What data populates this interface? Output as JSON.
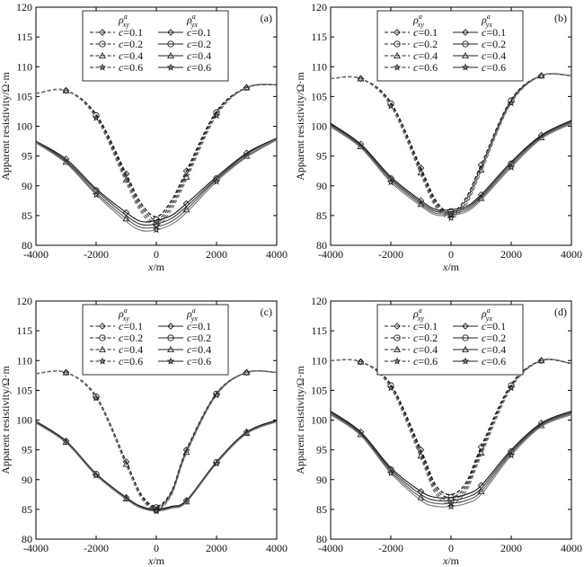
{
  "chart_data": [
    {
      "panel_label": "(a)",
      "type": "line",
      "xlabel": "x/m",
      "ylabel": "Apparent resistivity/Ω·m",
      "xlim": [
        -4000,
        4000
      ],
      "ylim": [
        80,
        120
      ],
      "xticks": [
        -4000,
        -2000,
        0,
        2000,
        4000
      ],
      "yticks": [
        80,
        85,
        90,
        95,
        100,
        105,
        110,
        115,
        120
      ],
      "grid": false,
      "legend": {
        "placement": "top-center",
        "group_headers": [
          "ρ",
          "ρ"
        ],
        "group_header_sup": [
          "a",
          "a"
        ],
        "group_header_sub": [
          "xy",
          "yx"
        ]
      },
      "x": [
        -4000,
        -3000,
        -2000,
        -1000,
        -500,
        0,
        500,
        1000,
        2000,
        3000,
        4000
      ],
      "series": [
        {
          "name": "c=0.1",
          "group": "xy",
          "values": [
            105.5,
            106.0,
            102.0,
            92.0,
            87.0,
            84.8,
            87.5,
            92.5,
            102.5,
            106.5,
            107.0
          ]
        },
        {
          "name": "c=0.2",
          "group": "xy",
          "values": [
            105.5,
            106.0,
            101.8,
            91.5,
            86.5,
            84.3,
            87.0,
            92.0,
            102.3,
            106.5,
            107.0
          ]
        },
        {
          "name": "c=0.4",
          "group": "xy",
          "values": [
            105.5,
            106.0,
            101.6,
            91.0,
            86.0,
            83.8,
            86.5,
            91.5,
            102.0,
            106.5,
            107.0
          ]
        },
        {
          "name": "c=0.6",
          "group": "xy",
          "values": [
            105.5,
            106.0,
            101.4,
            90.5,
            85.5,
            83.3,
            86.0,
            91.0,
            101.8,
            106.5,
            107.0
          ]
        },
        {
          "name": "c=0.1",
          "group": "yx",
          "values": [
            97.5,
            94.5,
            89.5,
            85.5,
            84.0,
            84.2,
            85.0,
            87.0,
            91.5,
            95.5,
            98.0
          ]
        },
        {
          "name": "c=0.2",
          "group": "yx",
          "values": [
            97.5,
            94.2,
            89.2,
            85.0,
            83.5,
            83.6,
            84.5,
            86.5,
            91.2,
            95.3,
            98.0
          ]
        },
        {
          "name": "c=0.4",
          "group": "yx",
          "values": [
            97.3,
            94.0,
            88.8,
            84.5,
            83.0,
            83.1,
            84.0,
            86.0,
            91.0,
            95.0,
            97.8
          ]
        },
        {
          "name": "c=0.6",
          "group": "yx",
          "values": [
            97.2,
            93.8,
            88.5,
            84.0,
            82.5,
            82.6,
            83.5,
            85.5,
            90.7,
            94.8,
            97.7
          ]
        }
      ]
    },
    {
      "panel_label": "(b)",
      "type": "line",
      "xlabel": "x/m",
      "ylabel": "Apparent resistivity/Ω·m",
      "xlim": [
        -4000,
        4000
      ],
      "ylim": [
        80,
        120
      ],
      "xticks": [
        -4000,
        -2000,
        0,
        2000,
        4000
      ],
      "yticks": [
        80,
        85,
        90,
        95,
        100,
        105,
        110,
        115,
        120
      ],
      "grid": false,
      "legend": {
        "placement": "top-center",
        "group_headers": [
          "ρ",
          "ρ"
        ],
        "group_header_sup": [
          "a",
          "a"
        ],
        "group_header_sub": [
          "xy",
          "yx"
        ]
      },
      "x": [
        -4000,
        -3000,
        -2000,
        -1000,
        -500,
        0,
        500,
        1000,
        2000,
        3000,
        4000
      ],
      "series": [
        {
          "name": "c=0.1",
          "group": "xy",
          "values": [
            108.0,
            108.0,
            104.0,
            93.0,
            87.5,
            85.5,
            88.0,
            93.5,
            104.5,
            108.5,
            108.5
          ]
        },
        {
          "name": "c=0.2",
          "group": "xy",
          "values": [
            108.0,
            108.0,
            103.8,
            92.6,
            87.1,
            85.2,
            87.6,
            93.1,
            104.3,
            108.5,
            108.5
          ]
        },
        {
          "name": "c=0.4",
          "group": "xy",
          "values": [
            108.0,
            108.0,
            103.6,
            92.2,
            86.7,
            84.9,
            87.2,
            92.7,
            104.1,
            108.5,
            108.5
          ]
        },
        {
          "name": "c=0.6",
          "group": "xy",
          "values": [
            108.0,
            108.0,
            103.4,
            91.8,
            86.3,
            84.6,
            86.8,
            92.3,
            103.9,
            108.5,
            108.5
          ]
        },
        {
          "name": "c=0.1",
          "group": "yx",
          "values": [
            100.5,
            97.0,
            91.5,
            87.5,
            86.0,
            86.0,
            86.5,
            88.5,
            94.0,
            98.5,
            101.0
          ]
        },
        {
          "name": "c=0.2",
          "group": "yx",
          "values": [
            100.3,
            96.8,
            91.2,
            87.2,
            85.7,
            85.7,
            86.2,
            88.2,
            93.7,
            98.3,
            100.8
          ]
        },
        {
          "name": "c=0.4",
          "group": "yx",
          "values": [
            100.1,
            96.6,
            90.9,
            86.9,
            85.4,
            85.4,
            85.9,
            87.9,
            93.4,
            98.1,
            100.6
          ]
        },
        {
          "name": "c=0.6",
          "group": "yx",
          "values": [
            99.9,
            96.4,
            90.6,
            86.6,
            85.1,
            85.1,
            85.6,
            87.6,
            93.1,
            97.9,
            100.4
          ]
        }
      ]
    },
    {
      "panel_label": "(c)",
      "type": "line",
      "xlabel": "x/m",
      "ylabel": "Apparent resistivity/Ω·m",
      "xlim": [
        -4000,
        4000
      ],
      "ylim": [
        80,
        120
      ],
      "xticks": [
        -4000,
        -2000,
        0,
        2000,
        4000
      ],
      "yticks": [
        80,
        85,
        90,
        95,
        100,
        105,
        110,
        115,
        120
      ],
      "grid": false,
      "legend": {
        "placement": "top-center",
        "group_headers": [
          "ρ",
          "ρ"
        ],
        "group_header_sup": [
          "a",
          "a"
        ],
        "group_header_sub": [
          "xy",
          "yx"
        ]
      },
      "x": [
        -4000,
        -3000,
        -2000,
        -1000,
        -500,
        0,
        500,
        1000,
        2000,
        3000,
        4000
      ],
      "series": [
        {
          "name": "c=0.1",
          "group": "xy",
          "values": [
            107.8,
            108.0,
            104.0,
            93.0,
            87.5,
            85.5,
            88.0,
            95.0,
            104.5,
            108.0,
            108.0
          ]
        },
        {
          "name": "c=0.2",
          "group": "xy",
          "values": [
            107.8,
            108.0,
            103.9,
            92.8,
            87.3,
            85.3,
            87.8,
            94.8,
            104.4,
            108.0,
            108.0
          ]
        },
        {
          "name": "c=0.4",
          "group": "xy",
          "values": [
            107.8,
            108.0,
            103.8,
            92.6,
            87.1,
            85.1,
            87.6,
            94.6,
            104.3,
            108.0,
            108.0
          ]
        },
        {
          "name": "c=0.6",
          "group": "xy",
          "values": [
            107.8,
            108.0,
            103.7,
            92.4,
            86.9,
            84.9,
            87.4,
            94.4,
            104.2,
            108.0,
            108.0
          ]
        },
        {
          "name": "c=0.1",
          "group": "yx",
          "values": [
            99.8,
            96.5,
            91.0,
            87.0,
            85.5,
            85.0,
            85.5,
            86.5,
            93.0,
            98.0,
            100.0
          ]
        },
        {
          "name": "c=0.2",
          "group": "yx",
          "values": [
            99.7,
            96.4,
            90.9,
            86.9,
            85.4,
            84.9,
            85.4,
            86.4,
            92.9,
            97.9,
            99.9
          ]
        },
        {
          "name": "c=0.4",
          "group": "yx",
          "values": [
            99.6,
            96.3,
            90.8,
            86.8,
            85.3,
            84.8,
            85.3,
            86.3,
            92.8,
            97.8,
            99.8
          ]
        },
        {
          "name": "c=0.6",
          "group": "yx",
          "values": [
            99.5,
            96.2,
            90.7,
            86.7,
            85.2,
            84.7,
            85.2,
            86.2,
            92.7,
            97.7,
            99.7
          ]
        }
      ]
    },
    {
      "panel_label": "(d)",
      "type": "line",
      "xlabel": "x/m",
      "ylabel": "Apparent resistivity/Ω·m",
      "xlim": [
        -4000,
        4000
      ],
      "ylim": [
        80,
        120
      ],
      "xticks": [
        -4000,
        -2000,
        0,
        2000,
        4000
      ],
      "yticks": [
        80,
        85,
        90,
        95,
        100,
        105,
        110,
        115,
        120
      ],
      "grid": false,
      "legend": {
        "placement": "top-center",
        "group_headers": [
          "ρ",
          "ρ"
        ],
        "group_header_sup": [
          "a",
          "a"
        ],
        "group_header_sub": [
          "xy",
          "yx"
        ]
      },
      "x": [
        -4000,
        -3000,
        -2000,
        -1000,
        -500,
        0,
        500,
        1000,
        2000,
        3000,
        4000
      ],
      "series": [
        {
          "name": "c=0.1",
          "group": "xy",
          "values": [
            110.0,
            109.8,
            106.0,
            95.0,
            89.0,
            87.5,
            89.5,
            95.5,
            106.0,
            110.0,
            109.5
          ]
        },
        {
          "name": "c=0.2",
          "group": "xy",
          "values": [
            110.0,
            109.8,
            105.8,
            94.5,
            88.5,
            87.0,
            89.0,
            95.0,
            105.8,
            110.0,
            109.5
          ]
        },
        {
          "name": "c=0.4",
          "group": "xy",
          "values": [
            110.0,
            109.8,
            105.6,
            94.0,
            88.0,
            86.5,
            88.5,
            94.5,
            105.6,
            110.0,
            109.5
          ]
        },
        {
          "name": "c=0.6",
          "group": "xy",
          "values": [
            110.0,
            109.8,
            105.4,
            93.5,
            87.5,
            86.0,
            88.0,
            94.0,
            105.4,
            110.0,
            109.5
          ]
        },
        {
          "name": "c=0.1",
          "group": "yx",
          "values": [
            101.5,
            98.0,
            92.0,
            88.0,
            87.0,
            87.0,
            87.5,
            89.0,
            95.0,
            99.5,
            101.5
          ]
        },
        {
          "name": "c=0.2",
          "group": "yx",
          "values": [
            101.3,
            97.8,
            91.7,
            87.5,
            86.5,
            86.5,
            87.0,
            88.5,
            94.7,
            99.3,
            101.3
          ]
        },
        {
          "name": "c=0.4",
          "group": "yx",
          "values": [
            101.1,
            97.6,
            91.4,
            87.0,
            86.0,
            86.0,
            86.5,
            88.0,
            94.4,
            99.1,
            101.1
          ]
        },
        {
          "name": "c=0.6",
          "group": "yx",
          "values": [
            100.9,
            97.4,
            91.1,
            86.5,
            85.5,
            85.5,
            86.0,
            87.5,
            94.1,
            98.9,
            100.9
          ]
        }
      ]
    }
  ]
}
